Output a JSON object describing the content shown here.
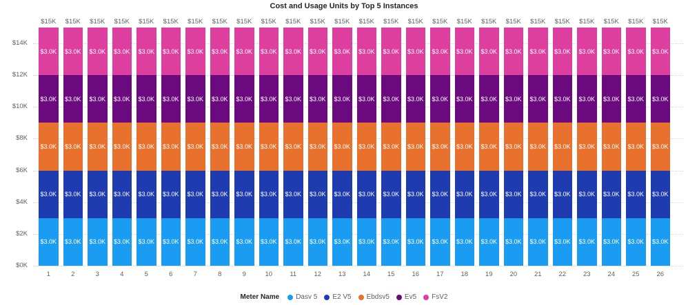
{
  "title": "Cost and Usage Units by Top 5 Instances",
  "chart_data": {
    "type": "bar",
    "stacked": true,
    "title": "Cost and Usage Units by Top 5 Instances",
    "xlabel": "",
    "ylabel": "",
    "ylim": [
      0,
      15000
    ],
    "grid": "dotted-horizontal",
    "legend_title": "Meter Name",
    "legend_position": "bottom",
    "segment_data_label": "$3.0K",
    "bar_total_label": "$15K",
    "categories": [
      "1",
      "2",
      "3",
      "4",
      "5",
      "6",
      "7",
      "8",
      "9",
      "10",
      "11",
      "12",
      "13",
      "14",
      "15",
      "16",
      "17",
      "18",
      "19",
      "20",
      "21",
      "22",
      "23",
      "24",
      "25",
      "26"
    ],
    "y_ticks": [
      {
        "value": 0,
        "label": "$0K"
      },
      {
        "value": 2000,
        "label": "$2K"
      },
      {
        "value": 4000,
        "label": "$4K"
      },
      {
        "value": 6000,
        "label": "$6K"
      },
      {
        "value": 8000,
        "label": "$8K"
      },
      {
        "value": 10000,
        "label": "$10K"
      },
      {
        "value": 12000,
        "label": "$12K"
      },
      {
        "value": 14000,
        "label": "$14K"
      }
    ],
    "series": [
      {
        "name": "Dasv 5",
        "color": "#1A9CF2",
        "values": [
          3000,
          3000,
          3000,
          3000,
          3000,
          3000,
          3000,
          3000,
          3000,
          3000,
          3000,
          3000,
          3000,
          3000,
          3000,
          3000,
          3000,
          3000,
          3000,
          3000,
          3000,
          3000,
          3000,
          3000,
          3000,
          3000
        ]
      },
      {
        "name": "E2 V5",
        "color": "#1E3CB0",
        "values": [
          3000,
          3000,
          3000,
          3000,
          3000,
          3000,
          3000,
          3000,
          3000,
          3000,
          3000,
          3000,
          3000,
          3000,
          3000,
          3000,
          3000,
          3000,
          3000,
          3000,
          3000,
          3000,
          3000,
          3000,
          3000,
          3000
        ]
      },
      {
        "name": "Ebdsv5",
        "color": "#E8712D",
        "values": [
          3000,
          3000,
          3000,
          3000,
          3000,
          3000,
          3000,
          3000,
          3000,
          3000,
          3000,
          3000,
          3000,
          3000,
          3000,
          3000,
          3000,
          3000,
          3000,
          3000,
          3000,
          3000,
          3000,
          3000,
          3000,
          3000
        ]
      },
      {
        "name": "Ev5",
        "color": "#6B0A7E",
        "values": [
          3000,
          3000,
          3000,
          3000,
          3000,
          3000,
          3000,
          3000,
          3000,
          3000,
          3000,
          3000,
          3000,
          3000,
          3000,
          3000,
          3000,
          3000,
          3000,
          3000,
          3000,
          3000,
          3000,
          3000,
          3000,
          3000
        ]
      },
      {
        "name": "FsV2",
        "color": "#DE3F9F",
        "values": [
          3000,
          3000,
          3000,
          3000,
          3000,
          3000,
          3000,
          3000,
          3000,
          3000,
          3000,
          3000,
          3000,
          3000,
          3000,
          3000,
          3000,
          3000,
          3000,
          3000,
          3000,
          3000,
          3000,
          3000,
          3000,
          3000
        ]
      }
    ]
  }
}
